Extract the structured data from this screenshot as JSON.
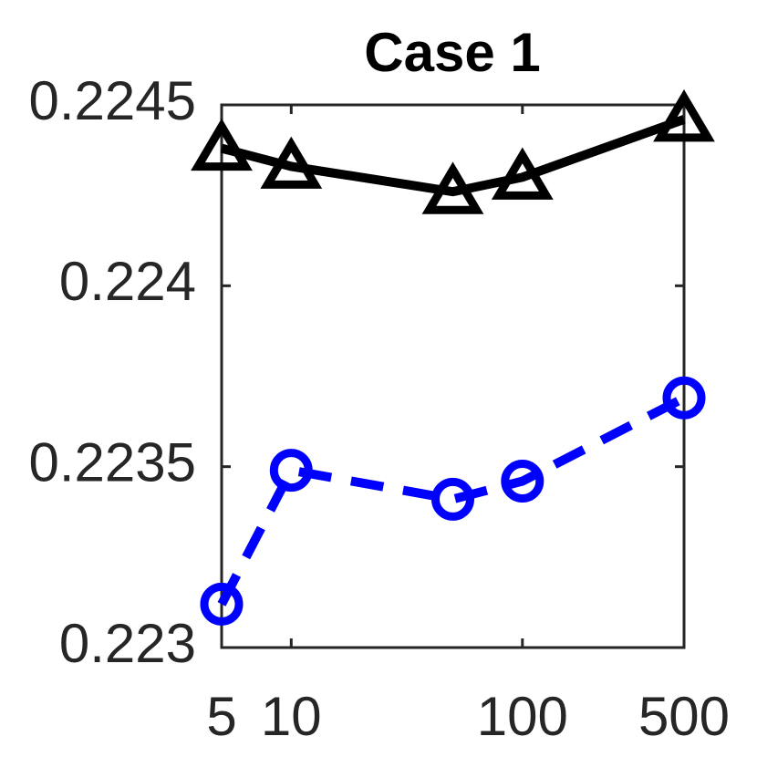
{
  "chart_data": {
    "type": "line",
    "title": "Case 1",
    "x": [
      5,
      10,
      50,
      100,
      500
    ],
    "xscale": "log",
    "xlim": [
      5,
      500
    ],
    "xticks": [
      5,
      10,
      100,
      500
    ],
    "ylim": [
      0.223,
      0.2245
    ],
    "yticks": [
      0.223,
      0.2235,
      0.224,
      0.2245
    ],
    "series": [
      {
        "color": "#000000",
        "marker": "triangle",
        "linestyle": "solid",
        "values": [
          0.22438,
          0.22433,
          0.22426,
          0.2243,
          0.22446
        ]
      },
      {
        "color": "#0000ff",
        "marker": "circle",
        "linestyle": "dashed",
        "values": [
          0.22312,
          0.22349,
          0.22341,
          0.22346,
          0.22369
        ]
      }
    ]
  }
}
